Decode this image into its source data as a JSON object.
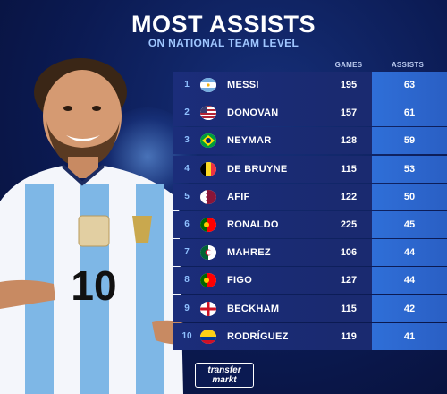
{
  "header": {
    "title": "MOST ASSISTS",
    "subtitle": "ON NATIONAL TEAM LEVEL"
  },
  "columns": {
    "games": "GAMES",
    "assists": "ASSISTS"
  },
  "rows": [
    {
      "rank": "1",
      "name": "MESSI",
      "games": "195",
      "assists": "63",
      "flag": "argentina"
    },
    {
      "rank": "2",
      "name": "DONOVAN",
      "games": "157",
      "assists": "61",
      "flag": "usa"
    },
    {
      "rank": "3",
      "name": "NEYMAR",
      "games": "128",
      "assists": "59",
      "flag": "brazil"
    },
    {
      "rank": "4",
      "name": "DE BRUYNE",
      "games": "115",
      "assists": "53",
      "flag": "belgium"
    },
    {
      "rank": "5",
      "name": "AFIF",
      "games": "122",
      "assists": "50",
      "flag": "qatar"
    },
    {
      "rank": "6",
      "name": "RONALDO",
      "games": "225",
      "assists": "45",
      "flag": "portugal"
    },
    {
      "rank": "7",
      "name": "MAHREZ",
      "games": "106",
      "assists": "44",
      "flag": "algeria"
    },
    {
      "rank": "8",
      "name": "FIGO",
      "games": "127",
      "assists": "44",
      "flag": "portugal"
    },
    {
      "rank": "9",
      "name": "BECKHAM",
      "games": "115",
      "assists": "42",
      "flag": "england"
    },
    {
      "rank": "10",
      "name": "RODRÍGUEZ",
      "games": "119",
      "assists": "41",
      "flag": "colombia"
    }
  ],
  "player": {
    "shirt_number": "10"
  },
  "logo": {
    "line1": "transfer",
    "line2": "markt"
  },
  "colors": {
    "background": "#0b1a52",
    "row": "#1b2d7a",
    "assists_accent": "#2f6fd8",
    "rank": "#8fc0ff"
  }
}
